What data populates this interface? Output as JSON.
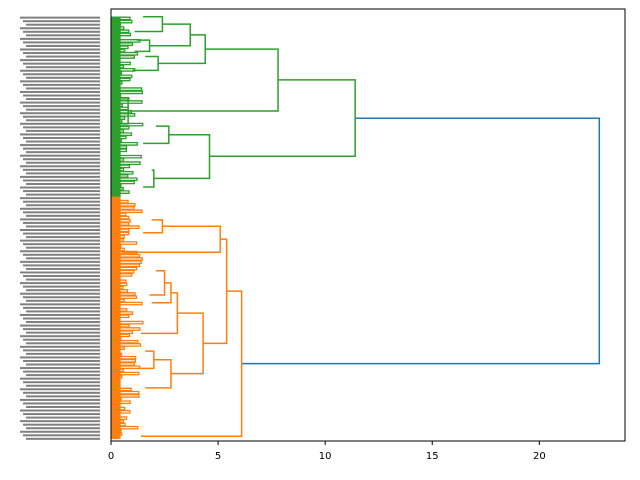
{
  "chart_data": {
    "type": "dendrogram",
    "orientation": "left",
    "title": "",
    "xlabel": "",
    "ylabel": "",
    "xlim": [
      0,
      24
    ],
    "x_ticks": [
      0,
      5,
      10,
      15,
      20
    ],
    "x_tick_labels": [
      "0",
      "5",
      "10",
      "15",
      "20"
    ],
    "grid": false,
    "leaf_labels_legible": false,
    "leaf_labels_note": "",
    "clusters": [
      {
        "name": "green",
        "color": "#2ca02c",
        "merge_distance": 11.4
      },
      {
        "name": "orange",
        "color": "#ff7f0e",
        "merge_distance": 6.1
      }
    ],
    "root_color": "#1f77b4",
    "root_merge_distance": 22.8,
    "links": [
      {
        "color": "#1f77b4",
        "x_left_top": 11.4,
        "x_merge": 22.8,
        "x_left_bottom": 6.1,
        "y_top": 0.253,
        "y_bottom": 0.821
      },
      {
        "color": "#2ca02c",
        "x_left_top": 7.8,
        "x_merge": 11.4,
        "x_left_bottom": 4.6,
        "y_top": 0.164,
        "y_bottom": 0.341
      },
      {
        "color": "#2ca02c",
        "x_left_top": 4.4,
        "x_merge": 7.8,
        "x_left_bottom": 0.8,
        "y_top": 0.093,
        "y_bottom": 0.236
      },
      {
        "color": "#2ca02c",
        "x_left_top": 3.7,
        "x_merge": 4.4,
        "x_left_bottom": 2.2,
        "y_top": 0.06,
        "y_bottom": 0.126
      },
      {
        "color": "#2ca02c",
        "x_left_top": 2.4,
        "x_merge": 3.7,
        "x_left_bottom": 1.8,
        "y_top": 0.035,
        "y_bottom": 0.085
      },
      {
        "color": "#2ca02c",
        "x_left_top": 1.5,
        "x_merge": 2.4,
        "x_left_bottom": 1.1,
        "y_top": 0.018,
        "y_bottom": 0.052
      },
      {
        "color": "#2ca02c",
        "x_left_top": 1.2,
        "x_merge": 1.8,
        "x_left_bottom": 1.1,
        "y_top": 0.072,
        "y_bottom": 0.098
      },
      {
        "color": "#2ca02c",
        "x_left_top": 1.6,
        "x_merge": 2.2,
        "x_left_bottom": 1.0,
        "y_top": 0.11,
        "y_bottom": 0.142
      },
      {
        "color": "#2ca02c",
        "x_left_top": 0.4,
        "x_merge": 0.8,
        "x_left_bottom": 0.3,
        "y_top": 0.206,
        "y_bottom": 0.266
      },
      {
        "color": "#2ca02c",
        "x_left_top": 2.7,
        "x_merge": 4.6,
        "x_left_bottom": 2.0,
        "y_top": 0.291,
        "y_bottom": 0.392
      },
      {
        "color": "#2ca02c",
        "x_left_top": 2.1,
        "x_merge": 2.7,
        "x_left_bottom": 1.5,
        "y_top": 0.271,
        "y_bottom": 0.311
      },
      {
        "color": "#2ca02c",
        "x_left_top": 1.9,
        "x_merge": 2.0,
        "x_left_bottom": 1.5,
        "y_top": 0.373,
        "y_bottom": 0.412
      },
      {
        "color": "#ff7f0e",
        "x_left_top": 5.4,
        "x_merge": 6.1,
        "x_left_bottom": 1.4,
        "y_top": 0.653,
        "y_bottom": 0.989
      },
      {
        "color": "#ff7f0e",
        "x_left_top": 5.1,
        "x_merge": 5.4,
        "x_left_bottom": 4.3,
        "y_top": 0.533,
        "y_bottom": 0.774
      },
      {
        "color": "#ff7f0e",
        "x_left_top": 2.4,
        "x_merge": 5.1,
        "x_left_bottom": 0.5,
        "y_top": 0.503,
        "y_bottom": 0.563
      },
      {
        "color": "#ff7f0e",
        "x_left_top": 1.9,
        "x_merge": 2.4,
        "x_left_bottom": 1.5,
        "y_top": 0.488,
        "y_bottom": 0.518
      },
      {
        "color": "#ff7f0e",
        "x_left_top": 3.1,
        "x_merge": 4.3,
        "x_left_bottom": 2.8,
        "y_top": 0.704,
        "y_bottom": 0.844
      },
      {
        "color": "#ff7f0e",
        "x_left_top": 2.8,
        "x_merge": 3.1,
        "x_left_bottom": 1.4,
        "y_top": 0.657,
        "y_bottom": 0.751
      },
      {
        "color": "#ff7f0e",
        "x_left_top": 2.5,
        "x_merge": 2.8,
        "x_left_bottom": 1.9,
        "y_top": 0.634,
        "y_bottom": 0.68
      },
      {
        "color": "#ff7f0e",
        "x_left_top": 2.1,
        "x_merge": 2.5,
        "x_left_bottom": 1.8,
        "y_top": 0.606,
        "y_bottom": 0.662
      },
      {
        "color": "#ff7f0e",
        "x_left_top": 2.0,
        "x_merge": 2.8,
        "x_left_bottom": 1.6,
        "y_top": 0.812,
        "y_bottom": 0.877
      },
      {
        "color": "#ff7f0e",
        "x_left_top": 1.6,
        "x_merge": 2.0,
        "x_left_bottom": 1.3,
        "y_top": 0.792,
        "y_bottom": 0.832
      }
    ]
  }
}
